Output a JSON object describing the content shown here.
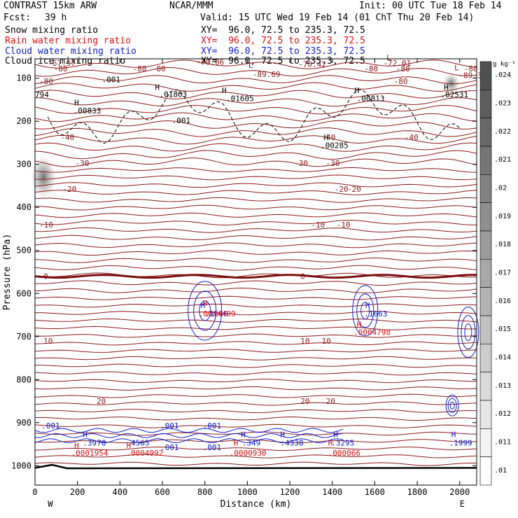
{
  "header": {
    "model": "CONTRAST 15km ARW",
    "center": "NCAR/MMM",
    "init": "Init: 00 UTC Tue 18 Feb 14",
    "fcst_label": "Fcst:",
    "fcst_value": "39 h",
    "valid": "Valid: 15 UTC Wed 19 Feb 14 (01 ChT Thu 20 Feb 14)"
  },
  "fields": [
    {
      "name": "Snow mixing ratio",
      "xy": "XY=  96.0, 72.5 to 235.3, 72.5",
      "color": "#000000"
    },
    {
      "name": "Rain water mixing ratio",
      "xy": "XY=  96.0, 72.5 to 235.3, 72.5",
      "color": "#e01010"
    },
    {
      "name": "Cloud water mixing ratio",
      "xy": "XY=  96.0, 72.5 to 235.3, 72.5",
      "color": "#1020d0"
    },
    {
      "name": "Cloud ice mixing ratio",
      "xy": "XY=  96.0, 72.5 to 235.3, 72.5",
      "color": "#000000"
    }
  ],
  "colorbar": {
    "unit": "g kg⁻¹",
    "labels": [
      ".024",
      ".023",
      ".022",
      ".021",
      ".02",
      ".019",
      ".018",
      ".017",
      ".016",
      ".015",
      ".014",
      ".013",
      ".012",
      ".011",
      ".01"
    ]
  },
  "chart_data": {
    "type": "contour",
    "xlabel": "Distance (km)",
    "ylabel": "Pressure (hPa)",
    "xlim": [
      0,
      2080
    ],
    "ylim": [
      1045,
      55
    ],
    "xticks": [
      0,
      200,
      400,
      600,
      800,
      1000,
      1200,
      1400,
      1600,
      1800,
      2000
    ],
    "yticks": [
      100,
      200,
      300,
      400,
      500,
      600,
      700,
      800,
      900,
      1000
    ],
    "x_end_labels": {
      "left": "W",
      "right": "E"
    },
    "temperature_contours": [
      {
        "value": "-80",
        "x": [
          88,
          460,
          550,
          1550,
          1700,
          2020
        ],
        "p": 78
      },
      {
        "value": "-80",
        "x": [
          20,
          1690
        ],
        "p": 107
      },
      {
        "value": "-40",
        "x": [
          120,
          1350,
          1740
        ],
        "p": 237
      },
      {
        "value": "-30",
        "x": [
          190,
          1220,
          1370
        ],
        "p": 297
      },
      {
        "value": "-20",
        "x": [
          130,
          1410,
          1470
        ],
        "p": 357
      },
      {
        "value": "-10",
        "x": [
          20,
          1300,
          1420
        ],
        "p": 440
      },
      {
        "value": "0",
        "x": [
          40,
          1250
        ],
        "p": 560
      },
      {
        "value": "10",
        "x": [
          40,
          1250,
          1350
        ],
        "p": 710
      },
      {
        "value": "20",
        "x": [
          290,
          1250,
          1370
        ],
        "p": 850
      }
    ],
    "annotations": [
      {
        "text": "-67.97",
        "x": 60,
        "p": 65,
        "color": "#8b1a1a"
      },
      {
        "text": "-70.06",
        "x": 760,
        "p": 62,
        "color": "#8b1a1a"
      },
      {
        "text": "L",
        "x": 1005,
        "p": 70,
        "color": "#8b1a1a"
      },
      {
        "text": "-70.42",
        "x": 1240,
        "p": 67,
        "color": "#8b1a1a"
      },
      {
        "text": "L",
        "x": 1655,
        "p": 52,
        "color": "#8b1a1a"
      },
      {
        "text": "-72.01",
        "x": 1640,
        "p": 65,
        "color": "#8b1a1a"
      },
      {
        "text": "L",
        "x": 1975,
        "p": 75,
        "color": "#8b1a1a"
      },
      {
        "text": "-89.34",
        "x": 1995,
        "p": 93,
        "color": "#8b1a1a"
      },
      {
        "text": "-89.69",
        "x": 1025,
        "p": 91,
        "color": "#8b1a1a"
      },
      {
        "text": ".001",
        "x": 315,
        "p": 103,
        "color": "#000000"
      },
      {
        "text": "794",
        "x": 0,
        "p": 138,
        "color": "#000000"
      },
      {
        "text": "H",
        "x": 565,
        "p": 121,
        "color": "#000000"
      },
      {
        "text": ".01863",
        "x": 585,
        "p": 137,
        "color": "#000000"
      },
      {
        "text": "H",
        "x": 880,
        "p": 128,
        "color": "#000000"
      },
      {
        "text": ".01605",
        "x": 900,
        "p": 147,
        "color": "#000000"
      },
      {
        "text": "H",
        "x": 1505,
        "p": 128,
        "color": "#000000"
      },
      {
        "text": ".00813",
        "x": 1515,
        "p": 147,
        "color": "#000000"
      },
      {
        "text": "H",
        "x": 1925,
        "p": 121,
        "color": "#000000"
      },
      {
        "text": ".02531",
        "x": 1910,
        "p": 138,
        "color": "#000000"
      },
      {
        "text": "H",
        "x": 185,
        "p": 157,
        "color": "#000000"
      },
      {
        "text": ".00833",
        "x": 180,
        "p": 175,
        "color": "#000000"
      },
      {
        "text": ".001",
        "x": 645,
        "p": 198,
        "color": "#000000"
      },
      {
        "text": "H",
        "x": 1360,
        "p": 237,
        "color": "#000000"
      },
      {
        "text": ".00285",
        "x": 1345,
        "p": 256,
        "color": "#000000"
      },
      {
        "text": "H",
        "x": 780,
        "p": 627,
        "color": "#1020d0"
      },
      {
        "text": ".1666",
        "x": 800,
        "p": 647,
        "color": "#1020d0"
      },
      {
        "text": "H",
        "x": 790,
        "p": 622,
        "color": "#e01010"
      },
      {
        "text": ".0004409",
        "x": 770,
        "p": 647,
        "color": "#e01010"
      },
      {
        "text": "H",
        "x": 1555,
        "p": 627,
        "color": "#1020d0"
      },
      {
        "text": ".1663",
        "x": 1550,
        "p": 647,
        "color": "#1020d0"
      },
      {
        "text": "H",
        "x": 1515,
        "p": 672,
        "color": "#e01010"
      },
      {
        "text": ".0004798",
        "x": 1500,
        "p": 690,
        "color": "#e01010"
      },
      {
        "text": ".001",
        "x": 30,
        "p": 907,
        "color": "#1020d0"
      },
      {
        "text": ".001",
        "x": 590,
        "p": 907,
        "color": "#1020d0"
      },
      {
        "text": ".001",
        "x": 790,
        "p": 907,
        "color": "#1020d0"
      },
      {
        "text": "H",
        "x": 225,
        "p": 927,
        "color": "#1020d0"
      },
      {
        "text": ".3978",
        "x": 225,
        "p": 947,
        "color": "#1020d0"
      },
      {
        "text": "H",
        "x": 185,
        "p": 952,
        "color": "#e01010"
      },
      {
        "text": ".0001954",
        "x": 170,
        "p": 970,
        "color": "#e01010"
      },
      {
        "text": ".4565",
        "x": 430,
        "p": 947,
        "color": "#1020d0"
      },
      {
        "text": "H",
        "x": 430,
        "p": 952,
        "color": "#e01010"
      },
      {
        "text": ".0004992",
        "x": 430,
        "p": 970,
        "color": "#e01010"
      },
      {
        "text": ".001",
        "x": 590,
        "p": 957,
        "color": "#1020d0"
      },
      {
        "text": ".001",
        "x": 790,
        "p": 957,
        "color": "#1020d0"
      },
      {
        "text": "H",
        "x": 970,
        "p": 927,
        "color": "#1020d0"
      },
      {
        "text": "H",
        "x": 935,
        "p": 947,
        "color": "#e01010"
      },
      {
        "text": ".349",
        "x": 975,
        "p": 947,
        "color": "#1020d0"
      },
      {
        "text": ".0000930",
        "x": 915,
        "p": 970,
        "color": "#e01010"
      },
      {
        "text": "H",
        "x": 1155,
        "p": 927,
        "color": "#1020d0"
      },
      {
        "text": ".4338",
        "x": 1155,
        "p": 947,
        "color": "#1020d0"
      },
      {
        "text": "H",
        "x": 1380,
        "p": 947,
        "color": "#e01010"
      },
      {
        "text": "H",
        "x": 1405,
        "p": 927,
        "color": "#1020d0"
      },
      {
        "text": ".3295",
        "x": 1395,
        "p": 947,
        "color": "#1020d0"
      },
      {
        "text": ".000066",
        "x": 1380,
        "p": 970,
        "color": "#e01010"
      },
      {
        "text": "H",
        "x": 1960,
        "p": 927,
        "color": "#1020d0"
      },
      {
        "text": ".1999",
        "x": 1950,
        "p": 947,
        "color": "#1020d0"
      }
    ],
    "grid": false
  }
}
